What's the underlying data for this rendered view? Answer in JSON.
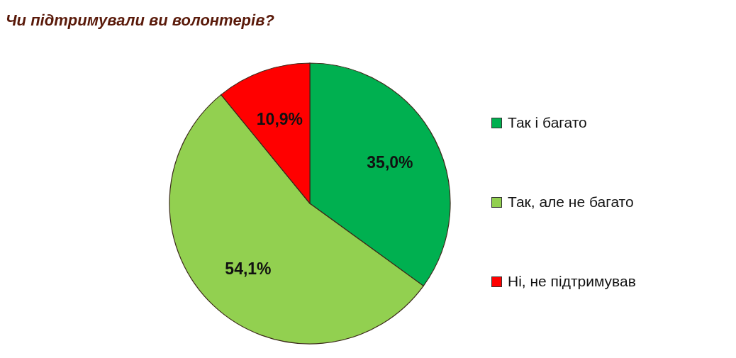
{
  "chart_data": {
    "type": "pie",
    "title": "Чи підтримували ви волонтерів?",
    "categories": [
      "Так і багато",
      "Так, але не багато",
      "Ні, не підтримував"
    ],
    "values": [
      35.0,
      54.1,
      10.9
    ],
    "colors": [
      "#00b050",
      "#92d050",
      "#ff0000"
    ],
    "value_labels": [
      "35,0%",
      "54,1%",
      "10,9%"
    ],
    "legend": "right"
  }
}
